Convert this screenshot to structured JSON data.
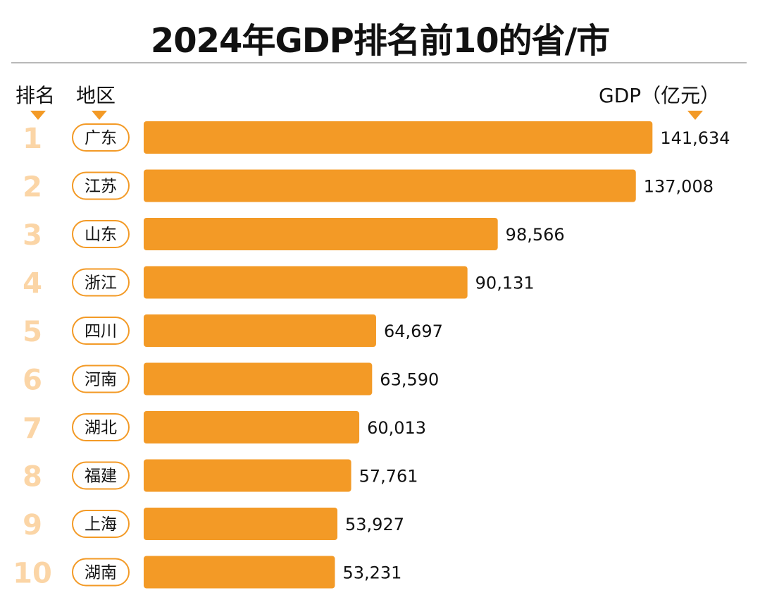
{
  "title": "2024年GDP排名前10的省/市",
  "headers": {
    "rank": "排名",
    "region": "地区",
    "value": "GDP（亿元）"
  },
  "colors": {
    "bar": "#f39a26",
    "rank_number": "#fbd5a6",
    "pill_border": "#f39a26"
  },
  "chart_data": {
    "type": "bar",
    "orientation": "horizontal",
    "title": "2024年GDP排名前10的省/市",
    "categories": [
      "广东",
      "江苏",
      "山东",
      "浙江",
      "四川",
      "河南",
      "湖北",
      "福建",
      "上海",
      "湖南"
    ],
    "ranks": [
      "1",
      "2",
      "3",
      "4",
      "5",
      "6",
      "7",
      "8",
      "9",
      "10"
    ],
    "values": [
      141634,
      137008,
      98566,
      90131,
      64697,
      63590,
      60013,
      57761,
      53927,
      53231
    ],
    "value_labels": [
      "141,634",
      "137,008",
      "98,566",
      "90,131",
      "64,697",
      "63,590",
      "60,013",
      "57,761",
      "53,927",
      "53,231"
    ],
    "xlabel": "",
    "ylabel": "GDP（亿元）",
    "grid": false
  }
}
